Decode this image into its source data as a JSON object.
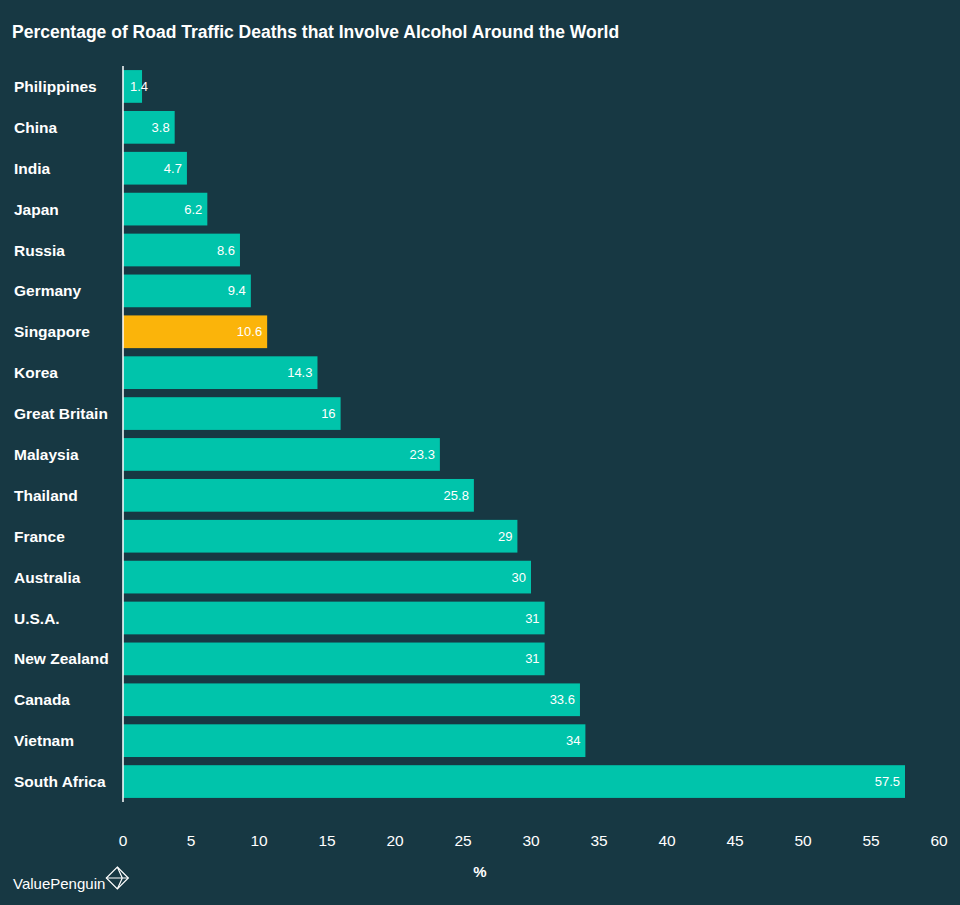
{
  "chart_data": {
    "type": "bar",
    "orientation": "horizontal",
    "title": "Percentage of Road Traffic Deaths that Involve Alcohol Around the World",
    "xlabel": "%",
    "source": "ValuePenguin",
    "categories": [
      "Philippines",
      "China",
      "India",
      "Japan",
      "Russia",
      "Germany",
      "Singapore",
      "Korea",
      "Great Britain",
      "Malaysia",
      "Thailand",
      "France",
      "Australia",
      "U.S.A.",
      "New Zealand",
      "Canada",
      "Vietnam",
      "South Africa"
    ],
    "values": [
      1.4,
      3.8,
      4.7,
      6.2,
      8.6,
      9.4,
      10.6,
      14.3,
      16,
      23.3,
      25.8,
      29,
      30,
      31,
      31,
      33.6,
      34,
      57.5
    ],
    "colors": [
      "#00c4ab",
      "#00c4ab",
      "#00c4ab",
      "#00c4ab",
      "#00c4ab",
      "#00c4ab",
      "#fbb40a",
      "#00c4ab",
      "#00c4ab",
      "#00c4ab",
      "#00c4ab",
      "#00c4ab",
      "#00c4ab",
      "#00c4ab",
      "#00c4ab",
      "#00c4ab",
      "#00c4ab",
      "#00c4ab"
    ],
    "xlim": [
      0,
      60
    ],
    "xticks": [
      0,
      5,
      10,
      15,
      20,
      25,
      30,
      35,
      40,
      45,
      50,
      55,
      60
    ],
    "grid": false,
    "data_labels": true
  }
}
